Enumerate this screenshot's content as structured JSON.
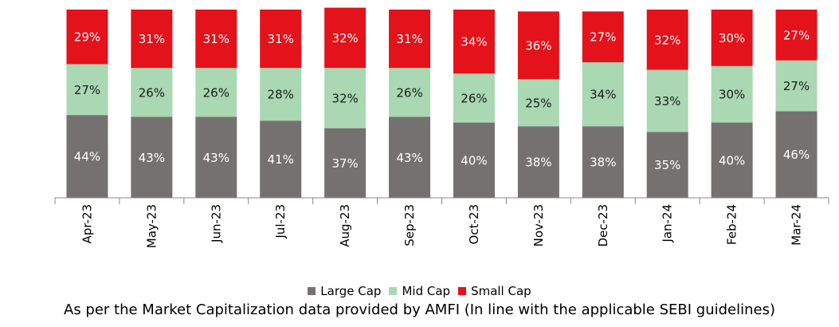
{
  "chart_data": {
    "type": "bar",
    "stacked": true,
    "percent": true,
    "categories": [
      "Apr-23",
      "May-23",
      "Jun-23",
      "Jul-23",
      "Aug-23",
      "Sep-23",
      "Oct-23",
      "Nov-23",
      "Dec-23",
      "Jan-24",
      "Feb-24",
      "Mar-24"
    ],
    "series": [
      {
        "name": "Large Cap",
        "color": "#767171",
        "values": [
          44,
          43,
          43,
          41,
          37,
          43,
          40,
          38,
          38,
          35,
          40,
          46
        ]
      },
      {
        "name": "Mid Cap",
        "color": "#a9d8b2",
        "values": [
          27,
          26,
          26,
          28,
          32,
          26,
          26,
          25,
          34,
          33,
          30,
          27
        ]
      },
      {
        "name": "Small Cap",
        "color": "#e3121b",
        "values": [
          29,
          31,
          31,
          31,
          32,
          31,
          34,
          36,
          27,
          32,
          30,
          27
        ]
      }
    ],
    "value_suffix": "%",
    "ylim": [
      0,
      100
    ],
    "grid": false,
    "legend_position": "bottom"
  },
  "footnote": "As per the Market Capitalization data provided by AMFI (In line with the applicable SEBI guidelines)"
}
